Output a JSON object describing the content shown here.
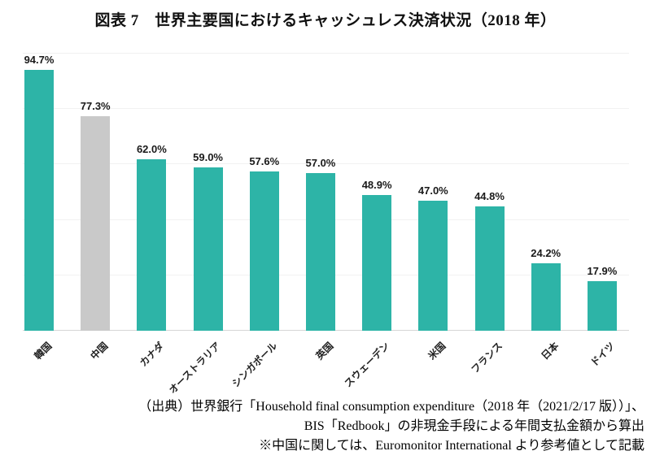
{
  "title": "図表 7　世界主要国におけるキャッシュレス決済状況（2018 年）",
  "footer": {
    "line1": "（出典）世界銀行「Household final consumption expenditure（2018 年（2021/2/17 版））」、",
    "line2": "BIS「Redbook」の非現金手段による年間支払金額から算出",
    "line3": "※中国に関しては、Euromonitor International より参考値として記載"
  },
  "colors": {
    "bar_teal": "#2db4a7",
    "bar_reference_gray": "#c9c9c9",
    "gridline": "#f1f1f1",
    "axis_line": "#d6d6d6",
    "label_text": "#1a1a1a"
  },
  "chart_data": {
    "type": "bar",
    "title": "図表 7　世界主要国におけるキャッシュレス決済状況（2018 年）",
    "categories": [
      "韓国",
      "中国",
      "カナダ",
      "オーストラリア",
      "シンガポール",
      "英国",
      "スウェーデン",
      "米国",
      "フランス",
      "日本",
      "ドイツ"
    ],
    "values": [
      94.7,
      77.3,
      62.0,
      59.0,
      57.6,
      57.0,
      48.9,
      47.0,
      44.8,
      24.2,
      17.9
    ],
    "value_labels": [
      "94.7%",
      "77.3%",
      "62.0%",
      "59.0%",
      "57.6%",
      "57.0%",
      "48.9%",
      "47.0%",
      "44.8%",
      "24.2%",
      "17.9%"
    ],
    "xlabel": "",
    "ylabel": "",
    "ylim": [
      0,
      100
    ],
    "yaxis_tick_labels_visible": false,
    "gridlines_pct": [
      20,
      40,
      60,
      80,
      100
    ],
    "grid": "horizontal",
    "legend": "none",
    "xlabel_rotation_deg": 45,
    "bar_color": "#2db4a7",
    "reference_bar": {
      "category": "中国",
      "index": 1,
      "color": "#c9c9c9",
      "reason": "参考値（Euromonitor International）"
    }
  }
}
